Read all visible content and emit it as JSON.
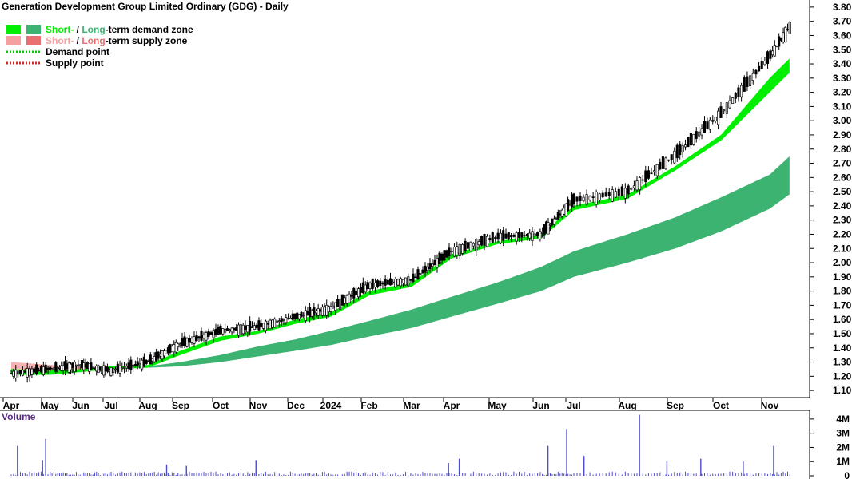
{
  "title": "Generation Development Group Limited Ordinary (GDG) - Daily",
  "legend": {
    "demand_zone": {
      "short": "Short-",
      "sep": " / ",
      "long": "Long",
      "rest": "-term demand zone"
    },
    "supply_zone": {
      "short": "Short-",
      "sep": " / ",
      "long": "Long",
      "rest": "-term supply zone"
    },
    "demand_point": "Demand point",
    "supply_point": "Supply point"
  },
  "colors": {
    "short_demand": "#00ee00",
    "long_demand": "#3cb371",
    "short_supply": "#f4a0a0",
    "long_supply": "#e87070",
    "demand_point": "#00cc00",
    "supply_point": "#dd2222",
    "candle": "#000000",
    "volume": "#4b4bc8",
    "grid": "#bbbbbb"
  },
  "volume_label": "Volume",
  "chart_data": {
    "type": "line",
    "x_months": [
      "Apr",
      "May",
      "Jun",
      "Jul",
      "Aug",
      "Sep",
      "Oct",
      "Nov",
      "Dec",
      "2024",
      "Feb",
      "Mar",
      "Apr",
      "May",
      "Jun",
      "Jul",
      "Aug",
      "Sep",
      "Oct",
      "Nov"
    ],
    "y_ticks": [
      "3.80",
      "3.70",
      "3.60",
      "3.50",
      "3.40",
      "3.30",
      "3.20",
      "3.10",
      "3.00",
      "2.90",
      "2.80",
      "2.70",
      "2.60",
      "2.50",
      "2.40",
      "2.30",
      "2.20",
      "2.10",
      "2.00",
      "1.90",
      "1.80",
      "1.70",
      "1.60",
      "1.50",
      "1.40",
      "1.30",
      "1.20",
      "1.10"
    ],
    "ylim": [
      1.05,
      3.85
    ],
    "scale": "linear",
    "months_index": [
      0,
      1,
      2,
      3,
      4,
      5,
      6,
      7,
      8,
      9,
      10,
      11,
      12,
      13,
      14,
      15,
      16,
      17,
      18,
      19,
      19.6
    ],
    "price_close": [
      1.22,
      1.25,
      1.28,
      1.24,
      1.3,
      1.43,
      1.52,
      1.55,
      1.62,
      1.68,
      1.84,
      1.88,
      2.08,
      2.18,
      2.2,
      2.44,
      2.5,
      2.76,
      3.05,
      3.45,
      3.68
    ],
    "short_demand_upper": [
      1.25,
      1.24,
      1.25,
      1.27,
      1.28,
      1.38,
      1.48,
      1.52,
      1.6,
      1.65,
      1.8,
      1.86,
      2.06,
      2.15,
      2.2,
      2.4,
      2.48,
      2.68,
      2.9,
      3.3,
      3.45
    ],
    "short_demand_lower": [
      1.21,
      1.21,
      1.23,
      1.25,
      1.26,
      1.35,
      1.45,
      1.5,
      1.57,
      1.62,
      1.77,
      1.83,
      2.03,
      2.13,
      2.17,
      2.37,
      2.45,
      2.65,
      2.86,
      3.2,
      3.35
    ],
    "long_demand_upper": [
      null,
      null,
      null,
      null,
      1.27,
      1.3,
      1.35,
      1.41,
      1.46,
      1.52,
      1.59,
      1.67,
      1.76,
      1.86,
      1.97,
      2.08,
      2.2,
      2.32,
      2.46,
      2.62,
      2.76
    ],
    "long_demand_lower": [
      null,
      null,
      null,
      null,
      1.26,
      1.27,
      1.3,
      1.34,
      1.38,
      1.42,
      1.48,
      1.54,
      1.62,
      1.71,
      1.8,
      1.9,
      2.0,
      2.1,
      2.22,
      2.38,
      2.49
    ],
    "supply_zone_segment": {
      "from_month": 0,
      "to_month": 3,
      "upper": [
        1.3,
        1.28,
        1.27,
        1.26
      ],
      "lower": [
        1.25,
        1.24,
        1.24,
        1.24
      ]
    },
    "volume_ticks": [
      "4M",
      "3M",
      "2M",
      "1M",
      "0"
    ],
    "volume_ylim": [
      0,
      4.5
    ],
    "volume_spikes_millions": [
      {
        "m": 0.2,
        "v": 2.1
      },
      {
        "m": 1.0,
        "v": 1.1
      },
      {
        "m": 1.1,
        "v": 2.6
      },
      {
        "m": 5.6,
        "v": 0.8
      },
      {
        "m": 6.3,
        "v": 0.7
      },
      {
        "m": 8.5,
        "v": 1.1
      },
      {
        "m": 14.6,
        "v": 0.9
      },
      {
        "m": 14.9,
        "v": 1.2
      },
      {
        "m": 17.4,
        "v": 2.1
      },
      {
        "m": 18.1,
        "v": 3.3
      },
      {
        "m": 18.6,
        "v": 1.4
      },
      {
        "m": 19.9,
        "v": 4.3
      },
      {
        "m": 20.6,
        "v": 1.0
      },
      {
        "m": 21.5,
        "v": 1.2
      },
      {
        "m": 22.6,
        "v": 1.0
      },
      {
        "m": 23.4,
        "v": 2.1
      }
    ]
  }
}
